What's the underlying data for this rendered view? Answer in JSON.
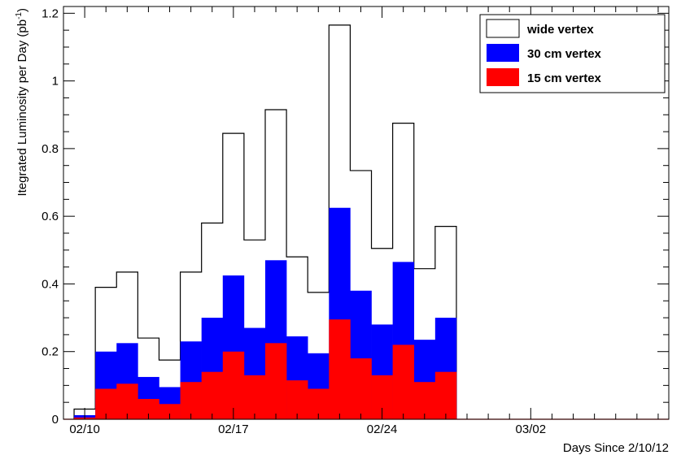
{
  "chart_data": {
    "type": "bar",
    "subtype": "stacked-histogram",
    "title": "",
    "xlabel": "Days Since 2/10/12",
    "ylabel_main": "Itegrated Luminosity per Day (pb",
    "ylabel_sup": "-1",
    "ylabel_close": ")",
    "x_range_days": [
      -1,
      27.5
    ],
    "ylim": [
      0,
      1.22
    ],
    "x_tick_labels": [
      {
        "day": 0,
        "label": "02/10"
      },
      {
        "day": 7,
        "label": "02/17"
      },
      {
        "day": 14,
        "label": "02/24"
      },
      {
        "day": 21,
        "label": "03/02"
      }
    ],
    "y_tick_labels": [
      {
        "value": 0,
        "label": "0"
      },
      {
        "value": 0.2,
        "label": "0.2"
      },
      {
        "value": 0.4,
        "label": "0.4"
      },
      {
        "value": 0.6,
        "label": "0.6"
      },
      {
        "value": 0.8,
        "label": "0.8"
      },
      {
        "value": 1.0,
        "label": "1"
      },
      {
        "value": 1.2,
        "label": "1.2"
      }
    ],
    "bin_start_days": [
      -0.5,
      0.5,
      1.5,
      2.5,
      3.5,
      4.5,
      5.5,
      6.5,
      7.5,
      8.5,
      9.5,
      10.5,
      11.5,
      12.5,
      13.5,
      14.5,
      15.5,
      16.5
    ],
    "bin_width_days": 1,
    "series": [
      {
        "name": "wide vertex",
        "color": "#ffffff",
        "outline": "#000000",
        "values": [
          0.03,
          0.39,
          0.435,
          0.24,
          0.175,
          0.435,
          0.58,
          0.845,
          0.53,
          0.915,
          0.48,
          0.375,
          1.165,
          0.735,
          0.505,
          0.875,
          0.445,
          0.57
        ]
      },
      {
        "name": "30 cm vertex",
        "color": "#0000ff",
        "values": [
          0.012,
          0.2,
          0.225,
          0.125,
          0.095,
          0.23,
          0.3,
          0.425,
          0.27,
          0.47,
          0.245,
          0.195,
          0.625,
          0.38,
          0.28,
          0.465,
          0.235,
          0.3
        ]
      },
      {
        "name": "15 cm vertex",
        "color": "#ff0000",
        "values": [
          0.005,
          0.09,
          0.105,
          0.06,
          0.045,
          0.11,
          0.14,
          0.2,
          0.13,
          0.225,
          0.115,
          0.09,
          0.295,
          0.18,
          0.13,
          0.22,
          0.11,
          0.14
        ]
      }
    ],
    "legend_position": "top-right",
    "baseline_color": "#ff0000"
  }
}
